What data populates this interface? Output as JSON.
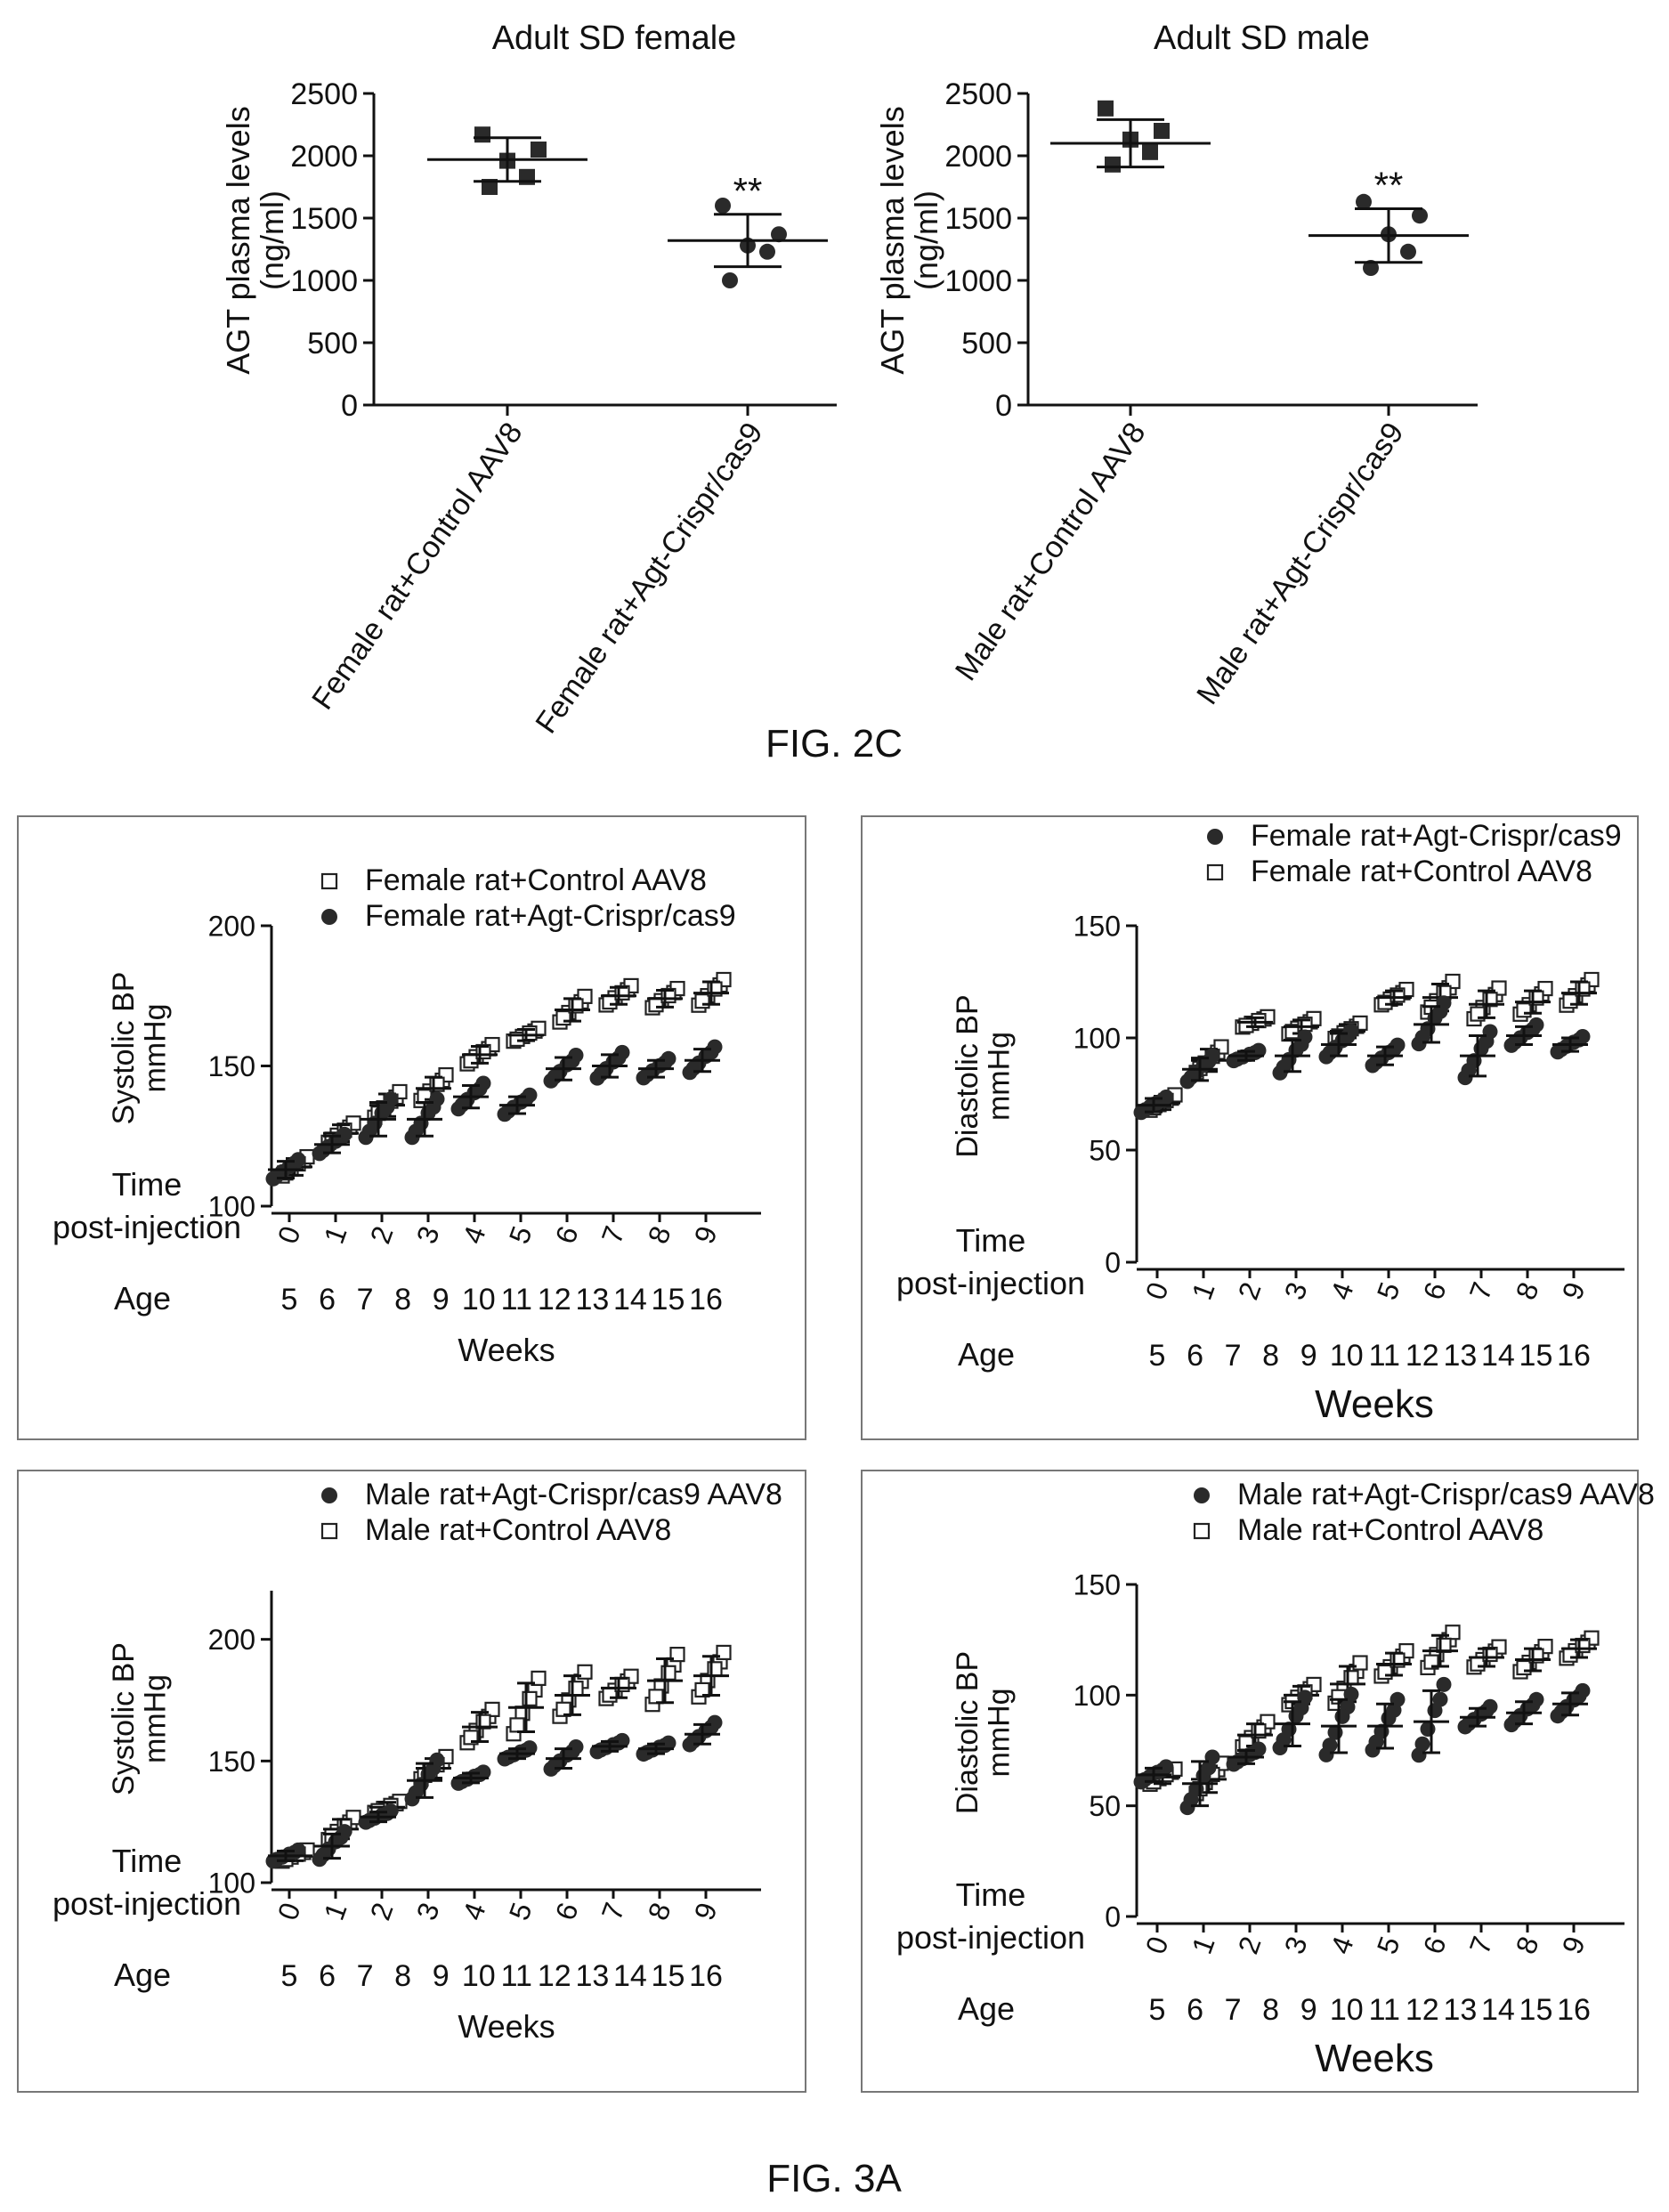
{
  "figure_labels": {
    "fig2c": "FIG. 2C",
    "fig3a": "FIG. 3A"
  },
  "bp_axis": {
    "row_time_line1": "Time",
    "row_time_line2": "post-injection",
    "row_age": "Age",
    "weeks_post": [
      "0",
      "1",
      "2",
      "3",
      "4",
      "5",
      "6",
      "7",
      "8",
      "9"
    ],
    "ages": [
      "5",
      "6",
      "7",
      "8",
      "9",
      "10",
      "11",
      "12",
      "13",
      "14",
      "15",
      "16"
    ],
    "xlabel": "Weeks"
  },
  "chart_data": [
    {
      "id": "agt-female",
      "type": "scatter",
      "title": "Adult SD female",
      "ylabel_line1": "AGT plasma levels",
      "ylabel_line2": "(ng/ml)",
      "ylim": [
        0,
        2500
      ],
      "yticks": [
        "0",
        "500",
        "1000",
        "1500",
        "2000",
        "2500"
      ],
      "categories": [
        "Female rat+Control AAV8",
        "Female rat+Agt-Crispr/cas9"
      ],
      "annotation": "**",
      "series": [
        {
          "marker": "square",
          "points": [
            1750,
            1830,
            1960,
            2050,
            2170
          ],
          "mean": 1970,
          "sd": 175
        },
        {
          "marker": "circle",
          "points": [
            1000,
            1230,
            1280,
            1370,
            1600
          ],
          "mean": 1320,
          "sd": 210
        }
      ]
    },
    {
      "id": "agt-male",
      "type": "scatter",
      "title": "Adult SD male",
      "ylabel_line1": "AGT plasma levels",
      "ylabel_line2": "(ng/ml)",
      "ylim": [
        0,
        2500
      ],
      "yticks": [
        "0",
        "500",
        "1000",
        "1500",
        "2000",
        "2500"
      ],
      "categories": [
        "Male rat+Control AAV8",
        "Male rat+Agt-Crispr/cas9"
      ],
      "annotation": "**",
      "series": [
        {
          "marker": "square",
          "points": [
            1930,
            2030,
            2130,
            2200,
            2380
          ],
          "mean": 2100,
          "sd": 190
        },
        {
          "marker": "circle",
          "points": [
            1100,
            1230,
            1370,
            1520,
            1630
          ],
          "mean": 1360,
          "sd": 215
        }
      ]
    },
    {
      "id": "sbp-female",
      "type": "scatter",
      "ylabel_line1": "Systolic BP",
      "ylabel_line2": "mmHg",
      "ylim": [
        100,
        200
      ],
      "yticks": [
        "100",
        "150",
        "200"
      ],
      "x": [
        0,
        1,
        2,
        3,
        4,
        5,
        6,
        7,
        8,
        9
      ],
      "legend": [
        {
          "marker": "square",
          "label": "Female rat+Control AAV8"
        },
        {
          "marker": "circle",
          "label": "Female rat+Agt-Crispr/cas9"
        }
      ],
      "series": [
        {
          "marker": "square",
          "means": [
            114,
            126,
            136,
            142,
            154,
            161,
            170,
            175,
            174,
            176
          ],
          "sds": [
            3,
            3,
            4,
            4,
            3,
            2,
            4,
            3,
            3,
            4
          ]
        },
        {
          "marker": "circle",
          "means": [
            113,
            122,
            131,
            131,
            139,
            136,
            149,
            150,
            149,
            152
          ],
          "sds": [
            3,
            3,
            6,
            6,
            4,
            3,
            4,
            4,
            3,
            4
          ]
        }
      ]
    },
    {
      "id": "dbp-female",
      "type": "scatter",
      "ylabel_line1": "Diastolic BP",
      "ylabel_line2": "mmHg",
      "ylim": [
        0,
        150
      ],
      "yticks": [
        "0",
        "50",
        "100",
        "150"
      ],
      "x": [
        0,
        1,
        2,
        3,
        4,
        5,
        6,
        7,
        8,
        9
      ],
      "legend": [
        {
          "marker": "circle",
          "label": "Female rat+Agt-Crispr/cas9"
        },
        {
          "marker": "square",
          "label": "Female rat+Control AAV8"
        }
      ],
      "series": [
        {
          "marker": "square",
          "means": [
            71,
            90,
            107,
            105,
            103,
            118,
            118,
            115,
            116,
            120
          ],
          "sds": [
            3,
            5,
            2,
            3,
            3,
            3,
            6,
            6,
            5,
            5
          ]
        },
        {
          "marker": "circle",
          "means": [
            70,
            86,
            92,
            92,
            97,
            92,
            106,
            92,
            101,
            97
          ],
          "sds": [
            3,
            5,
            2,
            7,
            5,
            4,
            8,
            9,
            4,
            3
          ]
        }
      ]
    },
    {
      "id": "sbp-male",
      "type": "scatter",
      "ylabel_line1": "Systolic BP",
      "ylabel_line2": "mmHg",
      "ylim": [
        100,
        220
      ],
      "yticks": [
        "100",
        "150",
        "200"
      ],
      "x": [
        0,
        1,
        2,
        3,
        4,
        5,
        6,
        7,
        8,
        9
      ],
      "legend": [
        {
          "marker": "circle",
          "label": "Male rat+Agt-Crispr/cas9 AAV8"
        },
        {
          "marker": "square",
          "label": "Male rat+Control AAV8"
        }
      ],
      "series": [
        {
          "marker": "square",
          "means": [
            111,
            122,
            131,
            147,
            164,
            172,
            177,
            180,
            183,
            185
          ],
          "sds": [
            2,
            4,
            2,
            4,
            6,
            10,
            8,
            4,
            9,
            8
          ]
        },
        {
          "marker": "circle",
          "means": [
            111,
            115,
            127,
            142,
            143,
            153,
            151,
            156,
            155,
            161
          ],
          "sds": [
            2,
            5,
            2,
            7,
            2,
            2,
            4,
            2,
            2,
            4
          ]
        }
      ]
    },
    {
      "id": "dbp-male",
      "type": "scatter",
      "ylabel_line1": "Diastolic BP",
      "ylabel_line2": "mmHg",
      "ylim": [
        0,
        150
      ],
      "yticks": [
        "0",
        "50",
        "100",
        "150"
      ],
      "x": [
        0,
        1,
        2,
        3,
        4,
        5,
        6,
        7,
        8,
        9
      ],
      "legend": [
        {
          "marker": "circle",
          "label": "Male rat+Agt-Crispr/cas9 AAV8"
        },
        {
          "marker": "square",
          "label": "Male rat+Control AAV8"
        }
      ],
      "series": [
        {
          "marker": "square",
          "means": [
            63,
            62,
            82,
            100,
            105,
            114,
            120,
            117,
            116,
            121
          ],
          "sds": [
            3,
            6,
            5,
            4,
            8,
            5,
            7,
            4,
            5,
            4
          ]
        },
        {
          "marker": "circle",
          "means": [
            64,
            60,
            72,
            87,
            86,
            86,
            88,
            90,
            92,
            96
          ],
          "sds": [
            3,
            10,
            3,
            10,
            12,
            10,
            14,
            4,
            5,
            5
          ]
        }
      ]
    }
  ]
}
